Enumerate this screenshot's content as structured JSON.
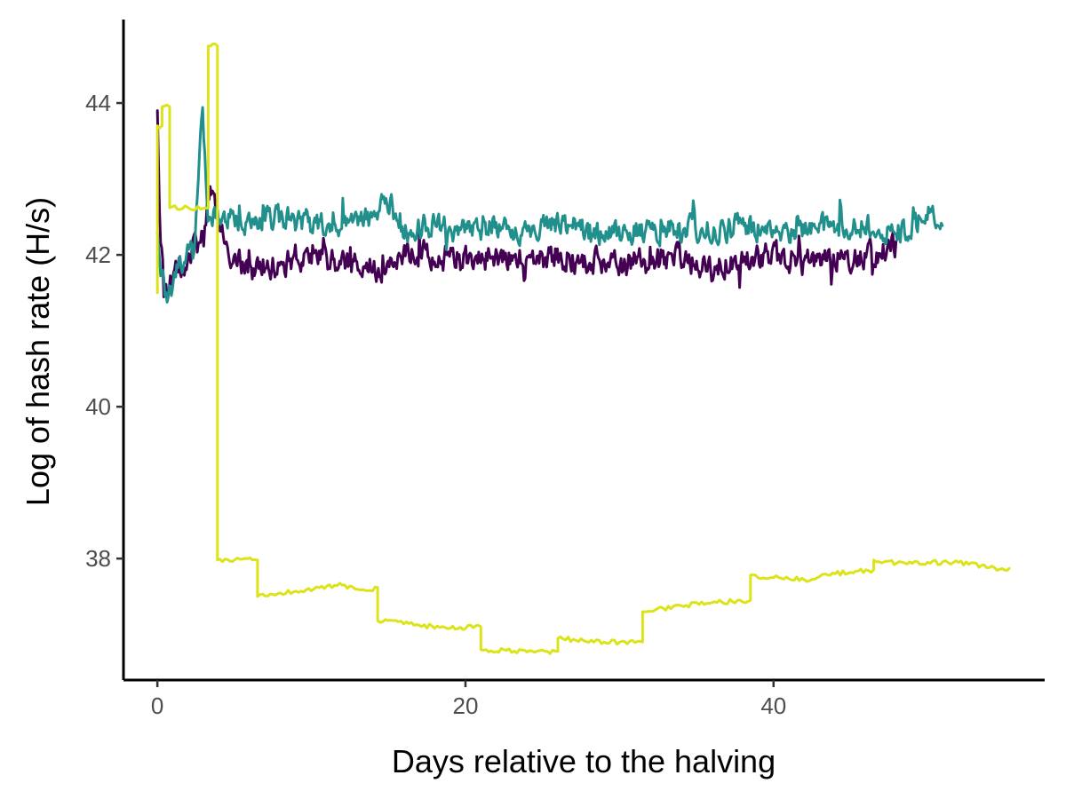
{
  "chart_data": {
    "type": "line",
    "title": "",
    "xlabel": "Days relative to the halving",
    "ylabel": "Log of hash rate (H/s)",
    "xlim": [
      -2.2,
      57.6
    ],
    "ylim": [
      36.4,
      45.1
    ],
    "x_ticks": [
      0,
      20,
      40
    ],
    "x_tick_labels": [
      "0",
      "20",
      "40"
    ],
    "y_ticks": [
      38,
      40,
      42,
      44
    ],
    "y_tick_labels": [
      "38",
      "40",
      "42",
      "44"
    ],
    "grid": false,
    "legend": "none",
    "series": [
      {
        "color": "#440154",
        "style": "noisy",
        "noise_amplitude": 0.28,
        "x_end": 48,
        "points": [
          [
            0,
            43.9
          ],
          [
            0.2,
            42.0
          ],
          [
            0.6,
            41.5
          ],
          [
            1.2,
            41.8
          ],
          [
            2,
            42.0
          ],
          [
            3,
            42.2
          ],
          [
            3.5,
            42.9
          ],
          [
            4.5,
            42.0
          ],
          [
            6,
            41.8
          ],
          [
            8,
            41.9
          ],
          [
            10,
            42.0
          ],
          [
            12,
            41.9
          ],
          [
            14,
            41.8
          ],
          [
            16,
            42.0
          ],
          [
            18,
            42.0
          ],
          [
            20,
            41.9
          ],
          [
            22,
            42.0
          ],
          [
            24,
            41.9
          ],
          [
            26,
            42.0
          ],
          [
            28,
            41.9
          ],
          [
            30,
            41.9
          ],
          [
            32,
            41.9
          ],
          [
            34,
            42.0
          ],
          [
            36,
            41.8
          ],
          [
            38,
            42.0
          ],
          [
            40,
            42.0
          ],
          [
            42,
            41.9
          ],
          [
            44,
            42.0
          ],
          [
            46,
            42.0
          ],
          [
            48,
            42.1
          ]
        ]
      },
      {
        "color": "#21908C",
        "style": "noisy",
        "noise_amplitude": 0.25,
        "x_end": 51,
        "points": [
          [
            0,
            42.3
          ],
          [
            0.2,
            41.8
          ],
          [
            0.6,
            41.4
          ],
          [
            1,
            41.6
          ],
          [
            1.6,
            41.9
          ],
          [
            2.4,
            42.2
          ],
          [
            2.9,
            44.0
          ],
          [
            3.3,
            42.5
          ],
          [
            4,
            42.5
          ],
          [
            6,
            42.4
          ],
          [
            8,
            42.5
          ],
          [
            10,
            42.4
          ],
          [
            12,
            42.4
          ],
          [
            14,
            42.5
          ],
          [
            15,
            42.7
          ],
          [
            16,
            42.3
          ],
          [
            18,
            42.4
          ],
          [
            20,
            42.3
          ],
          [
            22,
            42.4
          ],
          [
            24,
            42.3
          ],
          [
            26,
            42.4
          ],
          [
            28,
            42.3
          ],
          [
            30,
            42.3
          ],
          [
            32,
            42.3
          ],
          [
            34,
            42.4
          ],
          [
            36,
            42.3
          ],
          [
            38,
            42.4
          ],
          [
            40,
            42.3
          ],
          [
            42,
            42.3
          ],
          [
            44,
            42.4
          ],
          [
            46,
            42.4
          ],
          [
            48,
            42.3
          ],
          [
            50,
            42.5
          ],
          [
            51,
            42.4
          ]
        ]
      },
      {
        "color": "#DCE319",
        "style": "step",
        "noise_amplitude": 0.03,
        "points": [
          [
            0,
            41.5
          ],
          [
            0,
            43.7
          ],
          [
            0.3,
            43.7
          ],
          [
            0.3,
            43.95
          ],
          [
            0.8,
            43.95
          ],
          [
            0.8,
            42.62
          ],
          [
            3.3,
            42.62
          ],
          [
            3.3,
            44.75
          ],
          [
            3.9,
            44.75
          ],
          [
            3.9,
            37.98
          ],
          [
            6.5,
            37.98
          ],
          [
            6.5,
            37.5
          ],
          [
            9,
            37.57
          ],
          [
            12,
            37.65
          ],
          [
            13.5,
            37.58
          ],
          [
            14.3,
            37.62
          ],
          [
            14.3,
            37.18
          ],
          [
            17,
            37.12
          ],
          [
            19,
            37.08
          ],
          [
            21,
            37.1
          ],
          [
            21,
            36.8
          ],
          [
            24,
            36.77
          ],
          [
            26,
            36.78
          ],
          [
            26,
            36.95
          ],
          [
            29,
            36.9
          ],
          [
            31.5,
            36.9
          ],
          [
            31.5,
            37.3
          ],
          [
            34,
            37.38
          ],
          [
            36,
            37.42
          ],
          [
            38.5,
            37.45
          ],
          [
            38.5,
            37.78
          ],
          [
            40,
            37.75
          ],
          [
            42,
            37.72
          ],
          [
            44,
            37.8
          ],
          [
            46.5,
            37.85
          ],
          [
            46.5,
            37.98
          ],
          [
            48,
            37.94
          ],
          [
            50,
            37.95
          ],
          [
            52,
            37.95
          ],
          [
            54,
            37.88
          ],
          [
            55,
            37.85
          ],
          [
            55.3,
            37.87
          ]
        ]
      }
    ]
  }
}
